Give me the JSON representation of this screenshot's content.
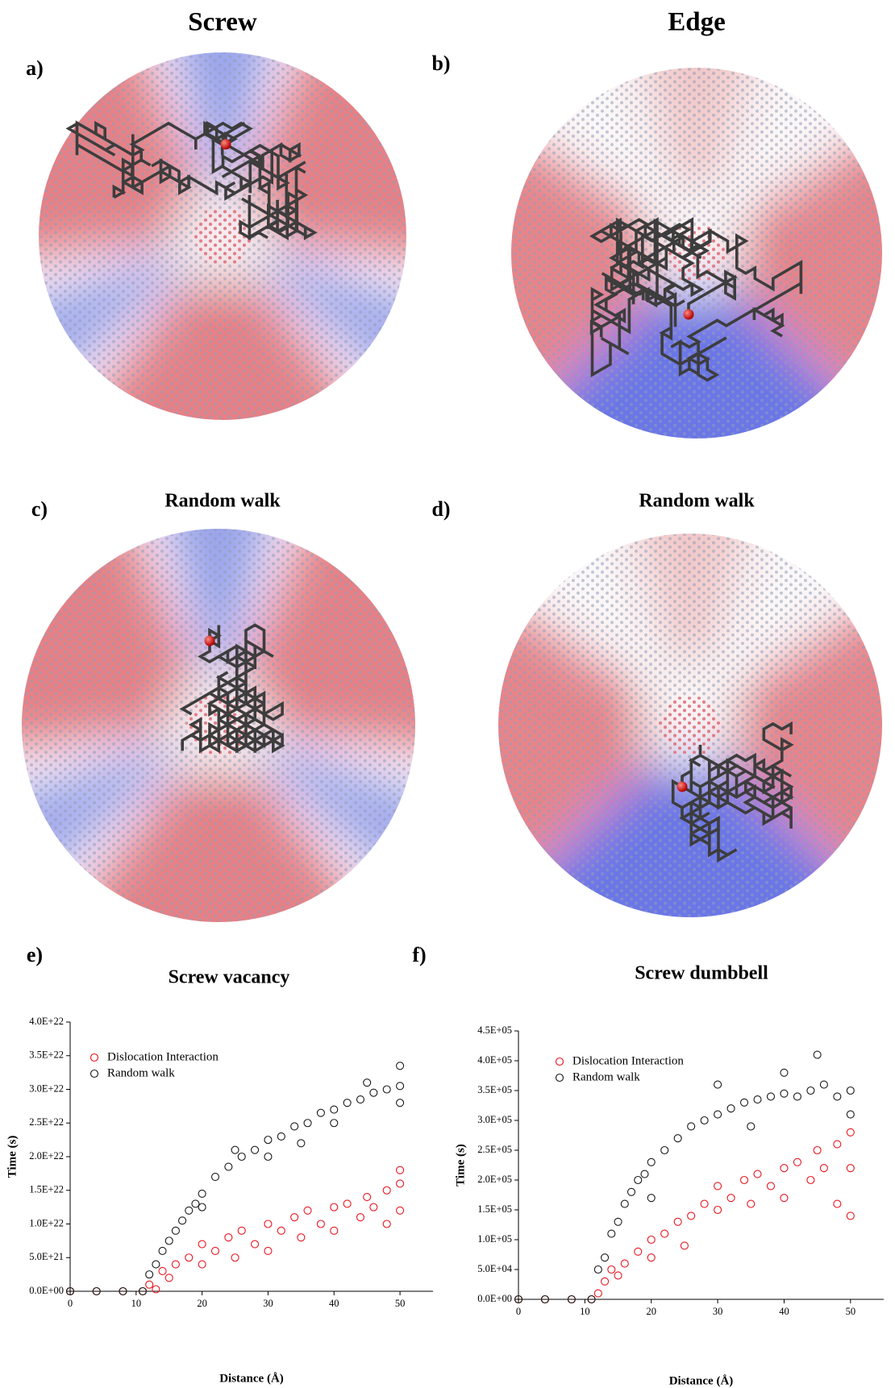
{
  "panels": [
    {
      "label": "a)",
      "title": "Screw"
    },
    {
      "label": "b)",
      "title": "Edge"
    },
    {
      "label": "c)",
      "title": "Random walk"
    },
    {
      "label": "d)",
      "title": "Random walk"
    }
  ],
  "chart_data": [
    {
      "type": "scatter",
      "label": "e)",
      "title": "Screw vacancy",
      "x_label": "Distance (Å)",
      "y_label": "Time (s)",
      "xlim": [
        0,
        55
      ],
      "xticks": [
        0,
        10,
        20,
        30,
        40,
        50
      ],
      "ylim": [
        0,
        4e+22
      ],
      "yticks": [
        {
          "value": 0,
          "label": "0.0E+00"
        },
        {
          "value": 5e+21,
          "label": "5.0E+21"
        },
        {
          "value": 1e+22,
          "label": "1.0E+22"
        },
        {
          "value": 1.5e+22,
          "label": "1.5E+22"
        },
        {
          "value": 2e+22,
          "label": "2.0E+22"
        },
        {
          "value": 2.5e+22,
          "label": "2.5E+22"
        },
        {
          "value": 3e+22,
          "label": "3.0E+22"
        },
        {
          "value": 3.5e+22,
          "label": "3.5E+22"
        },
        {
          "value": 4e+22,
          "label": "4.0E+22"
        }
      ],
      "legend": "upper left",
      "series": [
        {
          "name": "Dislocation Interaction",
          "color": "#e8141e",
          "x": [
            0,
            4,
            8,
            11,
            12,
            13,
            14,
            15,
            16,
            18,
            20,
            20,
            22,
            24,
            25,
            26,
            28,
            30,
            30,
            32,
            34,
            35,
            36,
            38,
            40,
            40,
            42,
            44,
            45,
            46,
            48,
            48,
            50,
            50,
            50
          ],
          "values": [
            0,
            0,
            0,
            0,
            1e+21,
            3e+20,
            3e+21,
            2e+21,
            4e+21,
            5e+21,
            4e+21,
            7e+21,
            6e+21,
            8e+21,
            5e+21,
            9e+21,
            7e+21,
            1e+22,
            6e+21,
            9e+21,
            1.1e+22,
            8e+21,
            1.2e+22,
            1e+22,
            1.25e+22,
            9e+21,
            1.3e+22,
            1.1e+22,
            1.4e+22,
            1.25e+22,
            1.5e+22,
            1e+22,
            1.6e+22,
            1.2e+22,
            1.8e+22
          ]
        },
        {
          "name": "Random walk",
          "color": "#1a1a1a",
          "x": [
            0,
            4,
            8,
            11,
            12,
            13,
            14,
            15,
            16,
            17,
            18,
            19,
            20,
            22,
            24,
            26,
            28,
            30,
            32,
            34,
            36,
            38,
            40,
            42,
            44,
            46,
            48,
            50,
            30,
            35,
            40,
            45,
            50,
            50,
            25,
            20
          ],
          "values": [
            0,
            0,
            0,
            0,
            2.5e+21,
            4e+21,
            6e+21,
            7.5e+21,
            9e+21,
            1.05e+22,
            1.2e+22,
            1.3e+22,
            1.45e+22,
            1.7e+22,
            1.85e+22,
            2e+22,
            2.1e+22,
            2.25e+22,
            2.3e+22,
            2.45e+22,
            2.5e+22,
            2.65e+22,
            2.7e+22,
            2.8e+22,
            2.85e+22,
            2.95e+22,
            3e+22,
            3.05e+22,
            2e+22,
            2.2e+22,
            2.5e+22,
            3.1e+22,
            3.35e+22,
            2.8e+22,
            2.1e+22,
            1.25e+22
          ]
        }
      ]
    },
    {
      "type": "scatter",
      "label": "f)",
      "title": "Screw dumbbell",
      "x_label": "Distance (Å)",
      "y_label": "Time (s)",
      "xlim": [
        0,
        55
      ],
      "xticks": [
        0,
        10,
        20,
        30,
        40,
        50
      ],
      "ylim": [
        0,
        450000
      ],
      "yticks": [
        {
          "value": 0,
          "label": "0.0E+00"
        },
        {
          "value": 50000,
          "label": "5.0E+04"
        },
        {
          "value": 100000,
          "label": "1.0E+05"
        },
        {
          "value": 150000,
          "label": "1.5E+05"
        },
        {
          "value": 200000,
          "label": "2.0E+05"
        },
        {
          "value": 250000,
          "label": "2.5E+05"
        },
        {
          "value": 300000,
          "label": "3.0E+05"
        },
        {
          "value": 350000,
          "label": "3.5E+05"
        },
        {
          "value": 400000,
          "label": "4.0E+05"
        },
        {
          "value": 450000,
          "label": "4.5E+05"
        }
      ],
      "legend": "upper left",
      "series": [
        {
          "name": "Dislocation Interaction",
          "color": "#e8141e",
          "x": [
            0,
            4,
            8,
            11,
            12,
            13,
            14,
            15,
            16,
            18,
            20,
            20,
            22,
            24,
            25,
            26,
            28,
            30,
            30,
            32,
            34,
            35,
            36,
            38,
            40,
            40,
            42,
            44,
            45,
            46,
            48,
            48,
            50,
            50,
            50
          ],
          "values": [
            0,
            0,
            0,
            0,
            10000,
            30000,
            50000,
            40000,
            60000,
            80000,
            70000,
            100000,
            110000,
            130000,
            90000,
            140000,
            160000,
            150000,
            190000,
            170000,
            200000,
            160000,
            210000,
            190000,
            220000,
            170000,
            230000,
            200000,
            250000,
            220000,
            260000,
            160000,
            280000,
            220000,
            140000
          ]
        },
        {
          "name": "Random walk",
          "color": "#1a1a1a",
          "x": [
            0,
            4,
            8,
            11,
            12,
            13,
            14,
            15,
            16,
            17,
            18,
            19,
            20,
            22,
            24,
            26,
            28,
            30,
            32,
            34,
            36,
            38,
            40,
            42,
            44,
            46,
            48,
            50,
            30,
            35,
            40,
            45,
            50,
            20
          ],
          "values": [
            0,
            0,
            0,
            0,
            50000,
            70000,
            110000,
            130000,
            160000,
            180000,
            200000,
            210000,
            230000,
            250000,
            270000,
            290000,
            300000,
            310000,
            320000,
            330000,
            335000,
            340000,
            345000,
            340000,
            350000,
            360000,
            340000,
            350000,
            360000,
            290000,
            380000,
            410000,
            310000,
            170000
          ]
        }
      ]
    }
  ]
}
